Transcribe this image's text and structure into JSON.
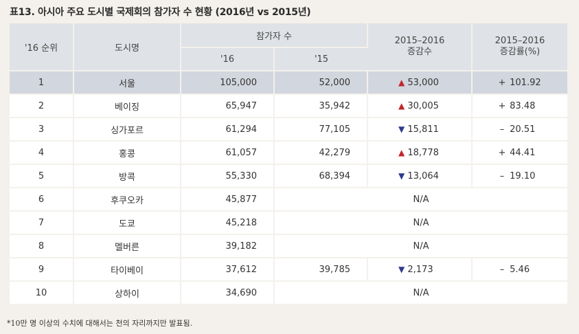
{
  "title": "표13. 아시아 주요 도시별 국제회의 참가자 수 현황 (2016년 vs 2015년)",
  "headers": {
    "rank": "'16 순위",
    "city": "도시명",
    "participants": "참가자 수",
    "y16": "'16",
    "y15": "'15",
    "change": "2015–2016\n증감수",
    "rate": "2015–2016\n증감률(%)"
  },
  "rows": [
    {
      "rank": "1",
      "city": "서울",
      "v16": "105,000",
      "v15": "52,000",
      "dir": "▲",
      "change": "53,000",
      "sign": "+",
      "rate": "101.92",
      "na": ""
    },
    {
      "rank": "2",
      "city": "베이징",
      "v16": "65,947",
      "v15": "35,942",
      "dir": "▲",
      "change": "30,005",
      "sign": "+",
      "rate": "83.48",
      "na": ""
    },
    {
      "rank": "3",
      "city": "싱가포르",
      "v16": "61,294",
      "v15": "77,105",
      "dir": "▼",
      "change": "15,811",
      "sign": "–",
      "rate": "20.51",
      "na": ""
    },
    {
      "rank": "4",
      "city": "홍콩",
      "v16": "61,057",
      "v15": "42,279",
      "dir": "▲",
      "change": "18,778",
      "sign": "+",
      "rate": "44.41",
      "na": ""
    },
    {
      "rank": "5",
      "city": "방콕",
      "v16": "55,330",
      "v15": "68,394",
      "dir": "▼",
      "change": "13,064",
      "sign": "–",
      "rate": "19.10",
      "na": ""
    },
    {
      "rank": "6",
      "city": "후쿠오카",
      "v16": "45,877",
      "na": "N/A"
    },
    {
      "rank": "7",
      "city": "도쿄",
      "v16": "45,218",
      "na": "N/A"
    },
    {
      "rank": "8",
      "city": "멜버른",
      "v16": "39,182",
      "na": "N/A"
    },
    {
      "rank": "9",
      "city": "타이베이",
      "v16": "37,612",
      "v15": "39,785",
      "dir": "▼",
      "change": "2,173",
      "sign": "–",
      "rate": "5.46",
      "na": ""
    },
    {
      "rank": "10",
      "city": "상하이",
      "v16": "34,690",
      "na": "N/A"
    }
  ],
  "note": "*10만 명 이상의 수치에 대해서는 천의 자리까지만 발표됨.",
  "colors": {
    "up": "#c0272d",
    "down": "#2e3a8c",
    "highlight": "#d2d6de"
  }
}
